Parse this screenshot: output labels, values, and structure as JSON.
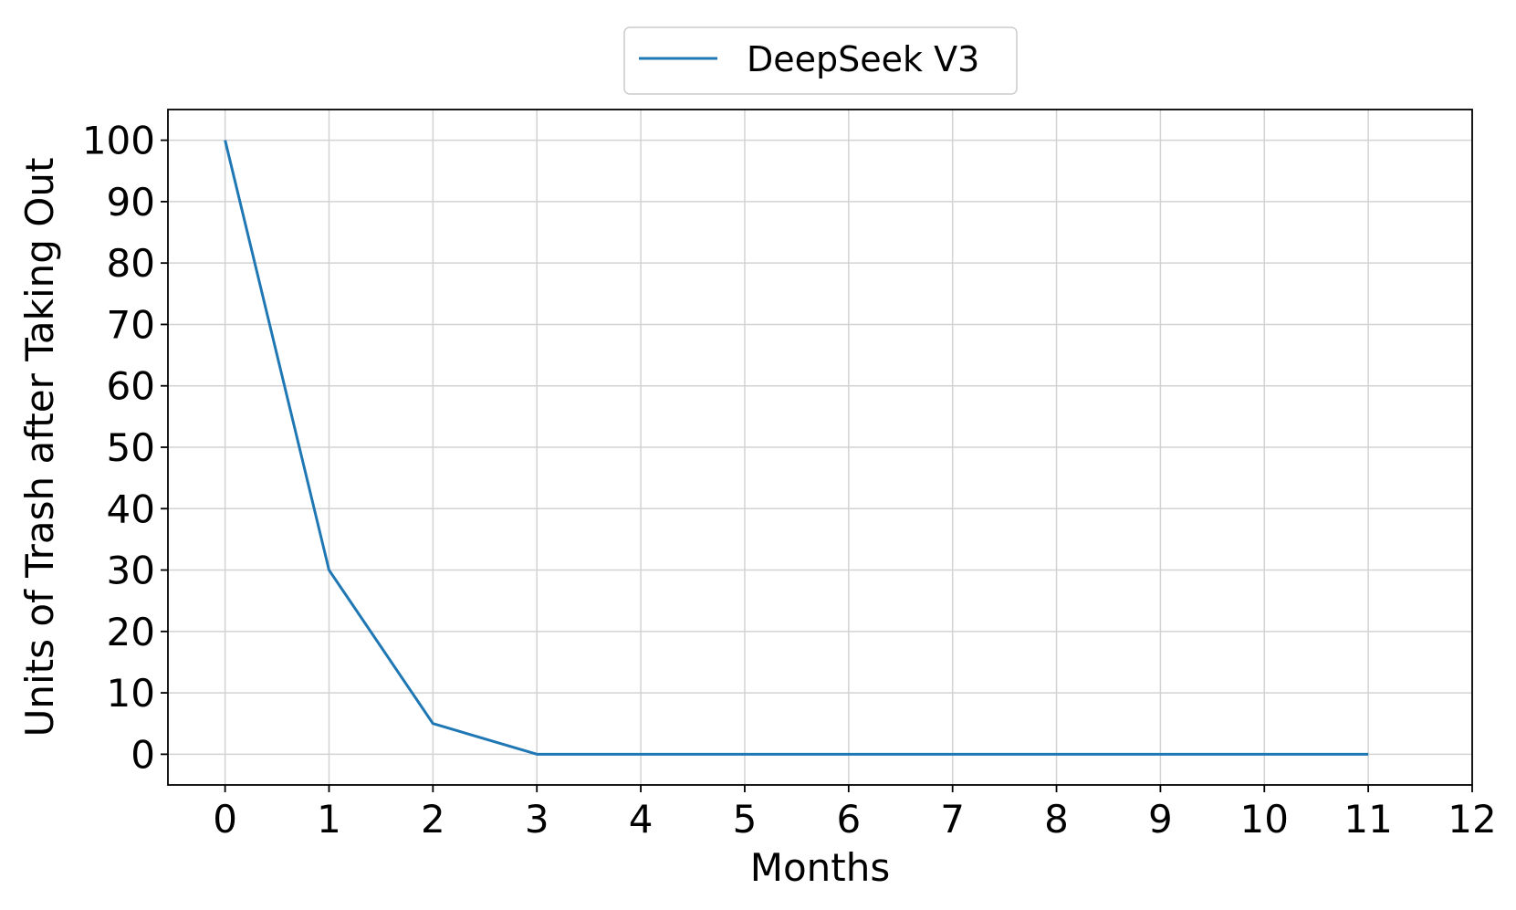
{
  "chart_data": {
    "type": "line",
    "xlabel": "Months",
    "ylabel": "Units of Trash after Taking Out",
    "xlim": [
      -0.55,
      12
    ],
    "ylim": [
      -5,
      105
    ],
    "xticks": [
      0,
      1,
      2,
      3,
      4,
      5,
      6,
      7,
      8,
      9,
      10,
      11,
      12
    ],
    "yticks": [
      0,
      10,
      20,
      30,
      40,
      50,
      60,
      70,
      80,
      90,
      100
    ],
    "grid": true,
    "legend_position": "top-center",
    "series": [
      {
        "name": "DeepSeek V3",
        "color": "#1f77b4",
        "x": [
          0,
          1,
          2,
          3,
          4,
          5,
          6,
          7,
          8,
          9,
          10,
          11
        ],
        "y": [
          100,
          30,
          5,
          0,
          0,
          0,
          0,
          0,
          0,
          0,
          0,
          0
        ]
      }
    ]
  }
}
